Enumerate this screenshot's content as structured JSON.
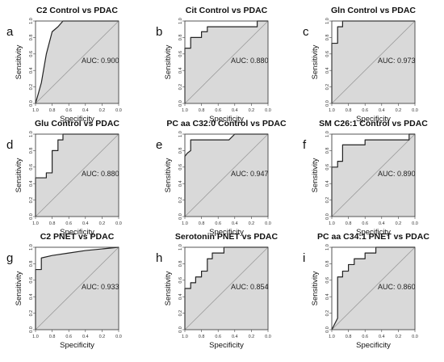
{
  "figure": {
    "colors": {
      "fill": "#d9d9d9",
      "curve": "#222222",
      "diagonal": "#9a9a9a",
      "frame": "#444444"
    }
  },
  "chart_data": [
    {
      "type": "line",
      "panel_letter": "a",
      "title": "C2 Control vs PDAC",
      "xlabel": "Specificity",
      "ylabel": "Sensitivity",
      "auc_label": "AUC: 0.900",
      "xlim": [
        1.0,
        0.0
      ],
      "ylim": [
        0.0,
        1.0
      ],
      "reversed_x": true,
      "x_ticks": [
        "1.0",
        "0.8",
        "0.6",
        "0.4",
        "0.2",
        "0.0"
      ],
      "y_ticks": [
        "0.0",
        "0.2",
        "0.4",
        "0.6",
        "0.8",
        "1.0"
      ],
      "diagonal": true,
      "area_filled": true,
      "curve_style": "smooth",
      "series": [
        {
          "specificity": [
            1.0,
            0.93,
            0.87,
            0.8,
            0.73,
            0.67,
            0.6,
            0.0
          ],
          "sensitivity": [
            0.0,
            0.25,
            0.6,
            0.87,
            0.93,
            1.0,
            1.0,
            1.0
          ]
        }
      ]
    },
    {
      "type": "line",
      "panel_letter": "b",
      "title": "Cit Control vs PDAC",
      "xlabel": "Specificity",
      "ylabel": "Sensitivity",
      "auc_label": "AUC: 0.880",
      "xlim": [
        1.0,
        0.0
      ],
      "ylim": [
        0.0,
        1.0
      ],
      "reversed_x": true,
      "x_ticks": [
        "1.0",
        "0.8",
        "0.6",
        "0.4",
        "0.2",
        "0.0"
      ],
      "y_ticks": [
        "0.0",
        "0.2",
        "0.4",
        "0.6",
        "0.8",
        "1.0"
      ],
      "diagonal": true,
      "area_filled": true,
      "curve_style": "step",
      "series": [
        {
          "specificity": [
            1.0,
            1.0,
            0.93,
            0.93,
            0.8,
            0.8,
            0.73,
            0.73,
            0.13,
            0.13,
            0.07,
            0.07,
            0.0
          ],
          "sensitivity": [
            0.0,
            0.67,
            0.67,
            0.8,
            0.8,
            0.87,
            0.87,
            0.93,
            0.93,
            1.0,
            1.0,
            1.0,
            1.0
          ]
        }
      ]
    },
    {
      "type": "line",
      "panel_letter": "c",
      "title": "Gln Control vs PDAC",
      "xlabel": "Specificity",
      "ylabel": "Sensitivity",
      "auc_label": "AUC: 0.973",
      "xlim": [
        1.0,
        0.0
      ],
      "ylim": [
        0.0,
        1.0
      ],
      "reversed_x": true,
      "x_ticks": [
        "1.0",
        "0.8",
        "0.6",
        "0.4",
        "0.2",
        "0.0"
      ],
      "y_ticks": [
        "0.0",
        "0.2",
        "0.4",
        "0.6",
        "0.8",
        "1.0"
      ],
      "diagonal": true,
      "area_filled": true,
      "curve_style": "step",
      "series": [
        {
          "specificity": [
            1.0,
            1.0,
            0.93,
            0.93,
            0.87,
            0.87,
            0.0
          ],
          "sensitivity": [
            0.0,
            0.73,
            0.73,
            0.93,
            0.93,
            1.0,
            1.0
          ]
        }
      ]
    },
    {
      "type": "line",
      "panel_letter": "d",
      "title": "Glu Control vs PDAC",
      "xlabel": "Specificity",
      "ylabel": "Sensitivity",
      "auc_label": "AUC: 0.880",
      "xlim": [
        1.0,
        0.0
      ],
      "ylim": [
        0.0,
        1.0
      ],
      "reversed_x": true,
      "x_ticks": [
        "1.0",
        "0.8",
        "0.6",
        "0.4",
        "0.2",
        "0.0"
      ],
      "y_ticks": [
        "0.0",
        "0.2",
        "0.4",
        "0.6",
        "0.8",
        "1.0"
      ],
      "diagonal": true,
      "area_filled": true,
      "curve_style": "step",
      "series": [
        {
          "specificity": [
            1.0,
            1.0,
            0.87,
            0.87,
            0.8,
            0.8,
            0.73,
            0.73,
            0.67,
            0.67,
            0.0
          ],
          "sensitivity": [
            0.0,
            0.47,
            0.47,
            0.53,
            0.53,
            0.8,
            0.8,
            0.93,
            0.93,
            1.0,
            1.0
          ]
        }
      ]
    },
    {
      "type": "line",
      "panel_letter": "e",
      "title": "PC aa C32:0 Control vs PDAC",
      "xlabel": "Specificity",
      "ylabel": "Sensitivity",
      "auc_label": "AUC: 0.947",
      "xlim": [
        1.0,
        0.0
      ],
      "ylim": [
        0.0,
        1.0
      ],
      "reversed_x": true,
      "x_ticks": [
        "1.0",
        "0.8",
        "0.6",
        "0.4",
        "0.2",
        "0.0"
      ],
      "y_ticks": [
        "0.0",
        "0.2",
        "0.4",
        "0.6",
        "0.8",
        "1.0"
      ],
      "diagonal": true,
      "area_filled": true,
      "curve_style": "step",
      "series": [
        {
          "specificity": [
            1.0,
            1.0,
            0.97,
            0.93,
            0.93,
            0.47,
            0.4,
            0.0
          ],
          "sensitivity": [
            0.0,
            0.73,
            0.77,
            0.8,
            0.93,
            0.93,
            1.0,
            1.0
          ]
        }
      ]
    },
    {
      "type": "line",
      "panel_letter": "f",
      "title": "SM C26:1 Control vs PDAC",
      "xlabel": "Specificity",
      "ylabel": "Sensitivity",
      "auc_label": "AUC: 0.890",
      "xlim": [
        1.0,
        0.0
      ],
      "ylim": [
        0.0,
        1.0
      ],
      "reversed_x": true,
      "x_ticks": [
        "1.0",
        "0.8",
        "0.6",
        "0.4",
        "0.2",
        "0.0"
      ],
      "y_ticks": [
        "0.0",
        "0.2",
        "0.4",
        "0.6",
        "0.8",
        "1.0"
      ],
      "diagonal": true,
      "area_filled": true,
      "curve_style": "step",
      "series": [
        {
          "specificity": [
            1.0,
            1.0,
            0.93,
            0.93,
            0.87,
            0.87,
            0.6,
            0.6,
            0.07,
            0.07,
            0.0
          ],
          "sensitivity": [
            0.0,
            0.6,
            0.6,
            0.67,
            0.67,
            0.87,
            0.87,
            0.93,
            0.93,
            1.0,
            1.0
          ]
        }
      ]
    },
    {
      "type": "line",
      "panel_letter": "g",
      "title": "C2 PNET vs PDAC",
      "xlabel": "Specificity",
      "ylabel": "Sensitivity",
      "auc_label": "AUC: 0.933",
      "xlim": [
        1.0,
        0.0
      ],
      "ylim": [
        0.0,
        1.0
      ],
      "reversed_x": true,
      "x_ticks": [
        "1.0",
        "0.8",
        "0.6",
        "0.4",
        "0.2",
        "0.0"
      ],
      "y_ticks": [
        "0.0",
        "0.2",
        "0.4",
        "0.6",
        "0.8",
        "1.0"
      ],
      "diagonal": true,
      "area_filled": true,
      "curve_style": "smooth",
      "series": [
        {
          "specificity": [
            1.0,
            1.0,
            0.93,
            0.93,
            0.8,
            0.6,
            0.4,
            0.2,
            0.0
          ],
          "sensitivity": [
            0.0,
            0.73,
            0.73,
            0.87,
            0.9,
            0.93,
            0.96,
            0.98,
            1.0
          ]
        }
      ]
    },
    {
      "type": "line",
      "panel_letter": "h",
      "title": "Serotonin PNET vs PDAC",
      "xlabel": "Specificity",
      "ylabel": "Sensitivity",
      "auc_label": "AUC: 0.854",
      "xlim": [
        1.0,
        0.0
      ],
      "ylim": [
        0.0,
        1.0
      ],
      "reversed_x": true,
      "x_ticks": [
        "1.0",
        "0.8",
        "0.6",
        "0.4",
        "0.2",
        "0.0"
      ],
      "y_ticks": [
        "0.0",
        "0.2",
        "0.4",
        "0.6",
        "0.8",
        "1.0"
      ],
      "diagonal": true,
      "area_filled": true,
      "curve_style": "step",
      "series": [
        {
          "specificity": [
            1.0,
            1.0,
            0.93,
            0.93,
            0.87,
            0.87,
            0.8,
            0.8,
            0.73,
            0.73,
            0.67,
            0.67,
            0.53,
            0.53,
            0.2,
            0.2,
            0.0
          ],
          "sensitivity": [
            0.0,
            0.5,
            0.5,
            0.57,
            0.57,
            0.64,
            0.64,
            0.71,
            0.71,
            0.86,
            0.86,
            0.93,
            0.93,
            1.0,
            1.0,
            1.0,
            1.0
          ]
        }
      ]
    },
    {
      "type": "line",
      "panel_letter": "i",
      "title": "PC aa C34:1 PNET vs PDAC",
      "xlabel": "Specificity",
      "ylabel": "Sensitivity",
      "auc_label": "AUC: 0.860",
      "xlim": [
        1.0,
        0.0
      ],
      "ylim": [
        0.0,
        1.0
      ],
      "reversed_x": true,
      "x_ticks": [
        "1.0",
        "0.8",
        "0.6",
        "0.4",
        "0.2",
        "0.0"
      ],
      "y_ticks": [
        "0.0",
        "0.2",
        "0.4",
        "0.6",
        "0.8",
        "1.0"
      ],
      "diagonal": true,
      "area_filled": true,
      "curve_style": "step",
      "series": [
        {
          "specificity": [
            1.0,
            0.93,
            0.93,
            0.87,
            0.87,
            0.8,
            0.8,
            0.73,
            0.73,
            0.6,
            0.6,
            0.47,
            0.47,
            0.0
          ],
          "sensitivity": [
            0.0,
            0.14,
            0.64,
            0.64,
            0.71,
            0.71,
            0.79,
            0.79,
            0.86,
            0.86,
            0.93,
            0.93,
            1.0,
            1.0
          ]
        }
      ]
    }
  ]
}
